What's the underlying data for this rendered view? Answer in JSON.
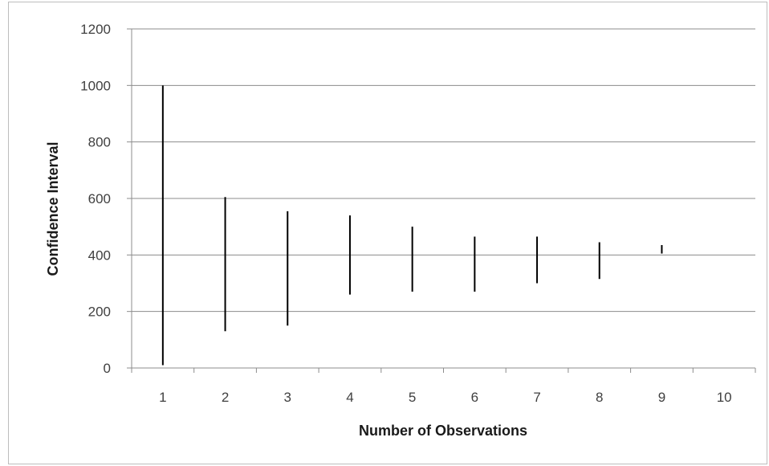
{
  "chart_data": {
    "type": "bar",
    "subtype": "range",
    "title": "",
    "xlabel": "Number of Observations",
    "ylabel": "Confidence Interval",
    "categories": [
      "1",
      "2",
      "3",
      "4",
      "5",
      "6",
      "7",
      "8",
      "9",
      "10"
    ],
    "ranges": [
      {
        "x": "1",
        "low": 10,
        "high": 1000
      },
      {
        "x": "2",
        "low": 130,
        "high": 605
      },
      {
        "x": "3",
        "low": 150,
        "high": 555
      },
      {
        "x": "4",
        "low": 260,
        "high": 540
      },
      {
        "x": "5",
        "low": 270,
        "high": 500
      },
      {
        "x": "6",
        "low": 270,
        "high": 465
      },
      {
        "x": "7",
        "low": 300,
        "high": 465
      },
      {
        "x": "8",
        "low": 315,
        "high": 445
      },
      {
        "x": "9",
        "low": 405,
        "high": 435
      }
    ],
    "ylim": [
      0,
      1200
    ],
    "yticks": [
      0,
      200,
      400,
      600,
      800,
      1000,
      1200
    ],
    "grid": true,
    "legend": "none",
    "line_color": "#000000",
    "grid_color": "#8c8c8c"
  }
}
